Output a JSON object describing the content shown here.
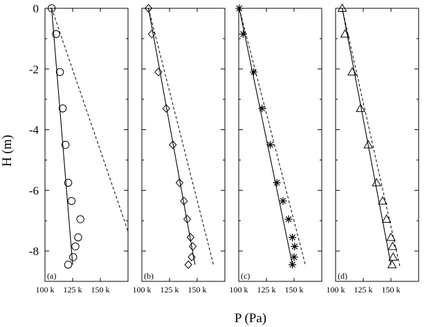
{
  "chart_data": {
    "type": "scatter",
    "xlabel": "P (Pa)",
    "ylabel": "H (m)",
    "ylim": [
      -9,
      0
    ],
    "y_ticks": [
      0,
      -2,
      -4,
      -6,
      -8
    ],
    "y_tick_labels": [
      "0",
      "-2",
      "-4",
      "-6",
      "-8"
    ],
    "xlim": [
      100000,
      175000
    ],
    "x_ticks": [
      100000,
      125000,
      150000
    ],
    "x_tick_labels": [
      "100 k",
      "125 k",
      "150 k"
    ],
    "grid": false,
    "panels": [
      {
        "label": "(a)",
        "marker": "circle",
        "points": [
          {
            "x": 106000,
            "y": 0
          },
          {
            "x": 110000,
            "y": -0.85
          },
          {
            "x": 113500,
            "y": -2.1
          },
          {
            "x": 116000,
            "y": -3.3
          },
          {
            "x": 118500,
            "y": -4.5
          },
          {
            "x": 121000,
            "y": -5.75
          },
          {
            "x": 124000,
            "y": -6.35
          },
          {
            "x": 132000,
            "y": -6.95
          },
          {
            "x": 130000,
            "y": -7.55
          },
          {
            "x": 127500,
            "y": -7.85
          },
          {
            "x": 125500,
            "y": -8.2
          },
          {
            "x": 121000,
            "y": -8.45
          }
        ],
        "solid_line": [
          [
            106000,
            0
          ],
          [
            125000,
            -8.45
          ]
        ],
        "dashed_line": [
          [
            106000,
            0
          ],
          [
            175000,
            -7.35
          ]
        ]
      },
      {
        "label": "(b)",
        "marker": "diamond",
        "points": [
          {
            "x": 106000,
            "y": 0
          },
          {
            "x": 109000,
            "y": -0.85
          },
          {
            "x": 115000,
            "y": -2.1
          },
          {
            "x": 122000,
            "y": -3.3
          },
          {
            "x": 128000,
            "y": -4.5
          },
          {
            "x": 134000,
            "y": -5.75
          },
          {
            "x": 138000,
            "y": -6.35
          },
          {
            "x": 141000,
            "y": -6.95
          },
          {
            "x": 144000,
            "y": -7.55
          },
          {
            "x": 146000,
            "y": -7.85
          },
          {
            "x": 145000,
            "y": -8.2
          },
          {
            "x": 142000,
            "y": -8.45
          }
        ],
        "solid_line": [
          [
            106000,
            0
          ],
          [
            148000,
            -8.45
          ]
        ],
        "dashed_line": [
          [
            106000,
            0
          ],
          [
            165000,
            -8.5
          ]
        ]
      },
      {
        "label": "(c)",
        "marker": "asterisk",
        "points": [
          {
            "x": 100500,
            "y": 0
          },
          {
            "x": 104000,
            "y": -0.85
          },
          {
            "x": 113500,
            "y": -2.1
          },
          {
            "x": 121000,
            "y": -3.3
          },
          {
            "x": 128500,
            "y": -4.5
          },
          {
            "x": 134500,
            "y": -5.75
          },
          {
            "x": 140000,
            "y": -6.35
          },
          {
            "x": 145000,
            "y": -6.95
          },
          {
            "x": 148500,
            "y": -7.55
          },
          {
            "x": 150500,
            "y": -7.85
          },
          {
            "x": 150000,
            "y": -8.2
          },
          {
            "x": 148500,
            "y": -8.45
          }
        ],
        "solid_line": [
          [
            100500,
            0
          ],
          [
            148500,
            -8.45
          ]
        ],
        "dashed_line": [
          [
            100500,
            0
          ],
          [
            160500,
            -8.5
          ]
        ]
      },
      {
        "label": "(d)",
        "marker": "triangle",
        "points": [
          {
            "x": 106000,
            "y": 0
          },
          {
            "x": 108500,
            "y": -0.85
          },
          {
            "x": 115000,
            "y": -2.1
          },
          {
            "x": 122500,
            "y": -3.3
          },
          {
            "x": 129500,
            "y": -4.5
          },
          {
            "x": 137000,
            "y": -5.75
          },
          {
            "x": 142500,
            "y": -6.35
          },
          {
            "x": 146000,
            "y": -6.95
          },
          {
            "x": 150000,
            "y": -7.55
          },
          {
            "x": 151500,
            "y": -7.85
          },
          {
            "x": 152000,
            "y": -8.2
          },
          {
            "x": 151000,
            "y": -8.45
          }
        ],
        "solid_line": [
          [
            106000,
            0
          ],
          [
            150000,
            -8.45
          ]
        ],
        "dashed_line": [
          [
            106000,
            0
          ],
          [
            158000,
            -8.5
          ]
        ]
      }
    ]
  }
}
